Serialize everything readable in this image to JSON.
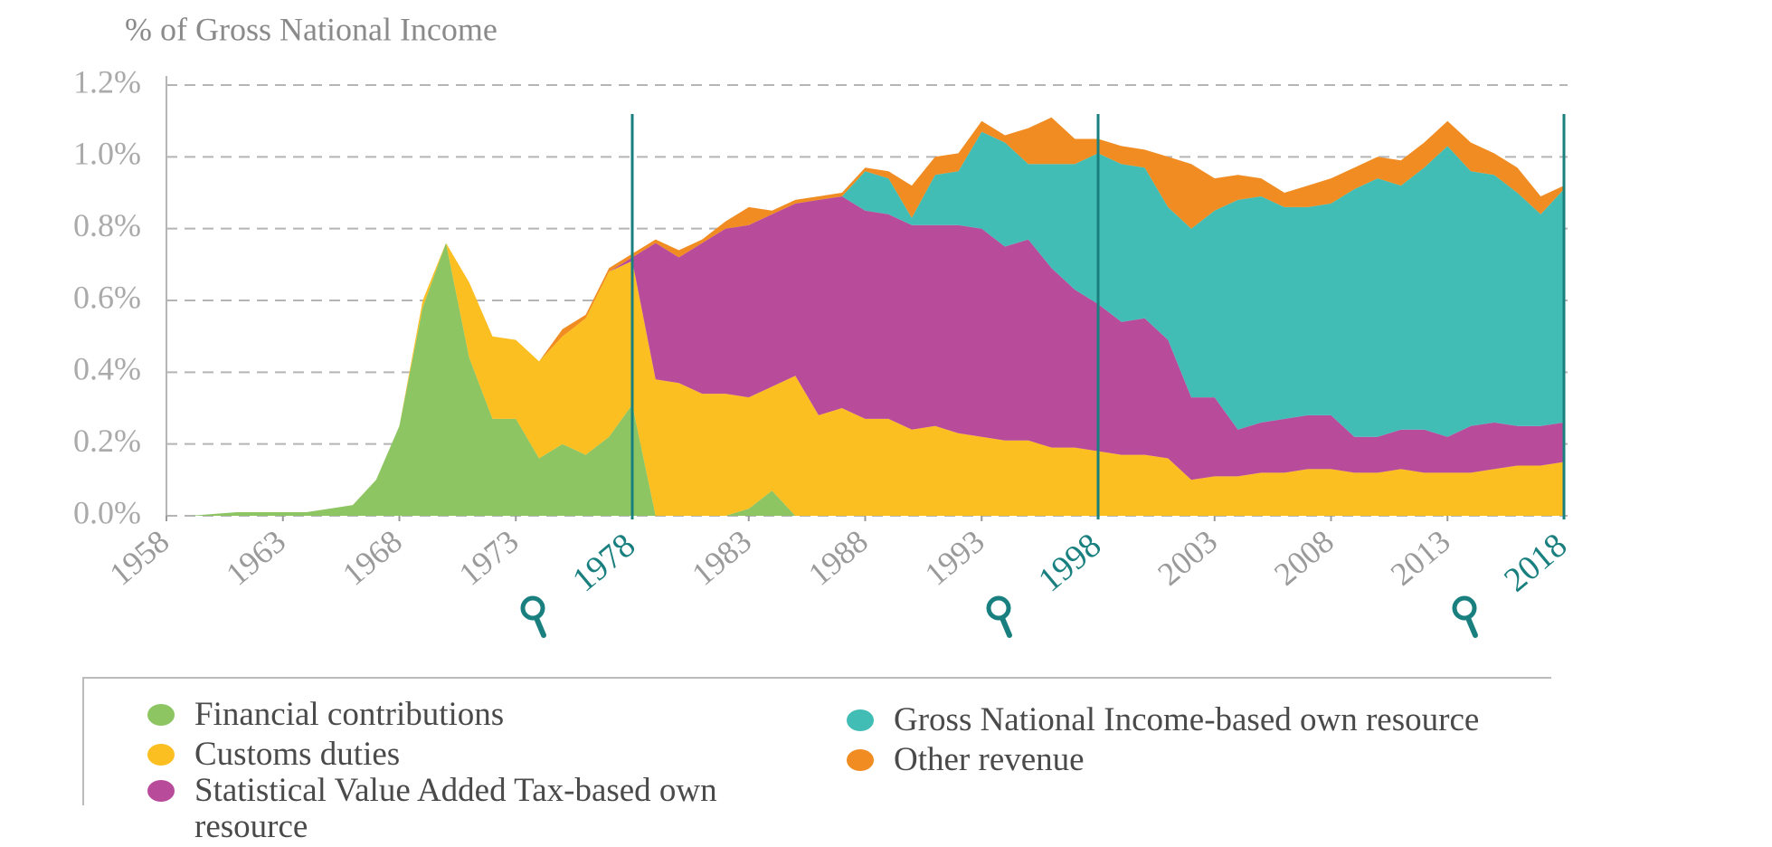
{
  "chart_data": {
    "type": "stacked_area",
    "title": "% of Gross National Income",
    "x": [
      1958,
      1959,
      1960,
      1961,
      1962,
      1963,
      1964,
      1965,
      1966,
      1967,
      1968,
      1969,
      1970,
      1971,
      1972,
      1973,
      1974,
      1975,
      1976,
      1977,
      1978,
      1979,
      1980,
      1981,
      1982,
      1983,
      1984,
      1985,
      1986,
      1987,
      1988,
      1989,
      1990,
      1991,
      1992,
      1993,
      1994,
      1995,
      1996,
      1997,
      1998,
      1999,
      2000,
      2001,
      2002,
      2003,
      2004,
      2005,
      2006,
      2007,
      2008,
      2009,
      2010,
      2011,
      2012,
      2013,
      2014,
      2015,
      2016,
      2017,
      2018
    ],
    "xlim": [
      1958,
      2018
    ],
    "xticks": [
      1958,
      1963,
      1968,
      1973,
      1983,
      1988,
      1993,
      2003,
      2008,
      2013
    ],
    "highlight_years": [
      1978,
      1998,
      2018
    ],
    "ylim": [
      0,
      1.2
    ],
    "yticks": [
      {
        "value": 0,
        "label": "0.0%"
      },
      {
        "value": 0.2,
        "label": "0.2%"
      },
      {
        "value": 0.4,
        "label": "0.4%"
      },
      {
        "value": 0.6,
        "label": "0.6%"
      },
      {
        "value": 0.8,
        "label": "0.8%"
      },
      {
        "value": 1.0,
        "label": "1.0%"
      },
      {
        "value": 1.2,
        "label": "1.2%"
      }
    ],
    "grid": true,
    "series": [
      {
        "name": "Financial contributions",
        "color": "#8dc563",
        "values": [
          0,
          0,
          0.005,
          0.01,
          0.01,
          0.01,
          0.01,
          0.02,
          0.03,
          0.1,
          0.25,
          0.58,
          0.76,
          0.44,
          0.27,
          0.27,
          0.16,
          0.2,
          0.17,
          0.22,
          0.31,
          0,
          0,
          0,
          0,
          0.02,
          0.07,
          0,
          0,
          0,
          0,
          0,
          0,
          0,
          0,
          0,
          0,
          0,
          0,
          0,
          0,
          0,
          0,
          0,
          0,
          0,
          0,
          0,
          0,
          0,
          0,
          0,
          0,
          0,
          0,
          0,
          0,
          0,
          0,
          0,
          0
        ]
      },
      {
        "name": "Customs duties",
        "color": "#fbbf22",
        "values": [
          0,
          0,
          0,
          0,
          0,
          0,
          0,
          0,
          0,
          0,
          0,
          0.02,
          0,
          0.21,
          0.23,
          0.22,
          0.27,
          0.3,
          0.38,
          0.46,
          0.4,
          0.38,
          0.37,
          0.34,
          0.34,
          0.31,
          0.29,
          0.39,
          0.28,
          0.3,
          0.27,
          0.27,
          0.24,
          0.25,
          0.23,
          0.22,
          0.21,
          0.21,
          0.19,
          0.19,
          0.18,
          0.17,
          0.17,
          0.16,
          0.1,
          0.11,
          0.11,
          0.12,
          0.12,
          0.13,
          0.13,
          0.12,
          0.12,
          0.13,
          0.12,
          0.12,
          0.12,
          0.13,
          0.14,
          0.14,
          0.15
        ]
      },
      {
        "name": "Statistical Value Added Tax-based own resource",
        "color": "#b84c9b",
        "values": [
          0,
          0,
          0,
          0,
          0,
          0,
          0,
          0,
          0,
          0,
          0,
          0,
          0,
          0,
          0,
          0,
          0,
          0,
          0,
          0,
          0.01,
          0.38,
          0.35,
          0.42,
          0.46,
          0.48,
          0.48,
          0.48,
          0.6,
          0.59,
          0.58,
          0.57,
          0.57,
          0.56,
          0.58,
          0.58,
          0.54,
          0.56,
          0.5,
          0.44,
          0.41,
          0.37,
          0.38,
          0.33,
          0.23,
          0.22,
          0.13,
          0.14,
          0.15,
          0.15,
          0.15,
          0.1,
          0.1,
          0.11,
          0.12,
          0.1,
          0.13,
          0.13,
          0.11,
          0.11,
          0.11
        ]
      },
      {
        "name": "Gross National Income-based own resource",
        "color": "#41bdb6",
        "values": [
          0,
          0,
          0,
          0,
          0,
          0,
          0,
          0,
          0,
          0,
          0,
          0,
          0,
          0,
          0,
          0,
          0,
          0,
          0,
          0,
          0,
          0,
          0,
          0,
          0,
          0,
          0,
          0,
          0,
          0,
          0.11,
          0.1,
          0.02,
          0.14,
          0.15,
          0.27,
          0.29,
          0.21,
          0.29,
          0.35,
          0.42,
          0.44,
          0.42,
          0.37,
          0.47,
          0.52,
          0.64,
          0.63,
          0.59,
          0.58,
          0.59,
          0.69,
          0.72,
          0.68,
          0.73,
          0.81,
          0.71,
          0.69,
          0.65,
          0.59,
          0.65
        ]
      },
      {
        "name": "Other revenue",
        "color": "#f08c21",
        "values": [
          0,
          0,
          0,
          0,
          0,
          0,
          0,
          0,
          0,
          0,
          0,
          0,
          0,
          0,
          0,
          0,
          0,
          0.02,
          0.01,
          0.01,
          0.01,
          0.01,
          0.02,
          0.01,
          0.02,
          0.05,
          0.01,
          0.01,
          0.01,
          0.01,
          0.01,
          0.02,
          0.09,
          0.05,
          0.05,
          0.03,
          0.02,
          0.1,
          0.13,
          0.07,
          0.04,
          0.05,
          0.05,
          0.14,
          0.18,
          0.09,
          0.07,
          0.05,
          0.04,
          0.06,
          0.07,
          0.06,
          0.06,
          0.07,
          0.07,
          0.07,
          0.08,
          0.06,
          0.07,
          0.05,
          0.01
        ]
      }
    ]
  }
}
